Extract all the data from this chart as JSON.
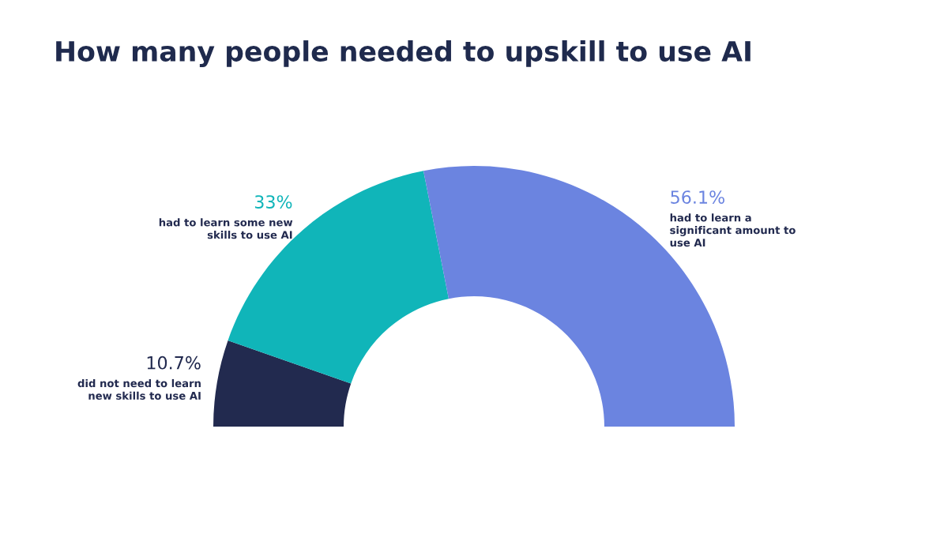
{
  "chart_data": {
    "type": "donut",
    "title": "How many people needed to upskill to use AI",
    "categories": [
      "did not need to learn new skills to use AI",
      "had to learn some new skills to use AI",
      "had to learn a significant amount to use AI"
    ],
    "values": [
      10.7,
      33,
      56.1
    ],
    "value_labels": [
      "10.7%",
      "33%",
      "56.1%"
    ],
    "colors": [
      "#222a4f",
      "#10b5b9",
      "#6b84e0"
    ]
  }
}
